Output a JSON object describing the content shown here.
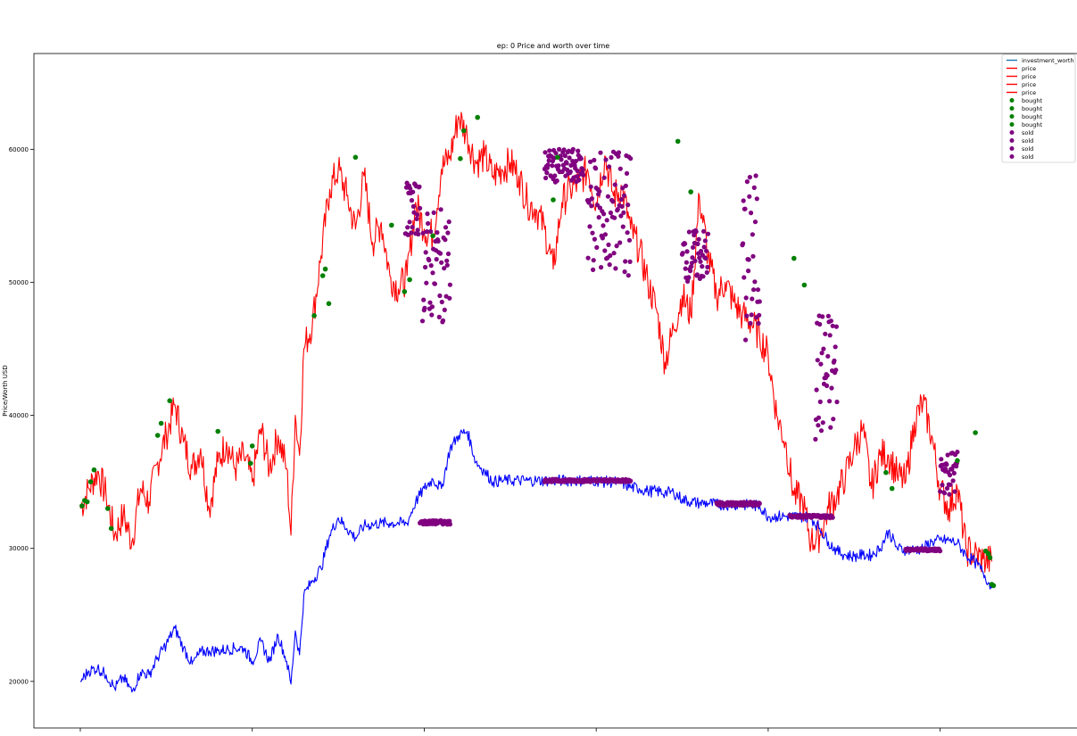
{
  "chart_data": {
    "type": "line",
    "title": "ep: 0 Price and worth over time",
    "xlabel": "",
    "ylabel": "Price/Worth USD",
    "ylim": [
      16500,
      67200
    ],
    "yticks": [
      20000,
      30000,
      40000,
      50000,
      60000
    ],
    "xlim": [
      0,
      1100
    ],
    "legend_position": "top-right",
    "legend": [
      {
        "label": "investment_worth",
        "kind": "line",
        "color": "#1f77b4"
      },
      {
        "label": "price",
        "kind": "line",
        "color": "#ff0000"
      },
      {
        "label": "price",
        "kind": "line",
        "color": "#ff0000"
      },
      {
        "label": "price",
        "kind": "line",
        "color": "#ff0000"
      },
      {
        "label": "price",
        "kind": "line",
        "color": "#ff0000"
      },
      {
        "label": "bought",
        "kind": "dot",
        "color": "#008000"
      },
      {
        "label": "bought",
        "kind": "dot",
        "color": "#008000"
      },
      {
        "label": "bought",
        "kind": "dot",
        "color": "#008000"
      },
      {
        "label": "bought",
        "kind": "dot",
        "color": "#008000"
      },
      {
        "label": "sold",
        "kind": "dot",
        "color": "#800080"
      },
      {
        "label": "sold",
        "kind": "dot",
        "color": "#800080"
      },
      {
        "label": "sold",
        "kind": "dot",
        "color": "#800080"
      },
      {
        "label": "sold",
        "kind": "dot",
        "color": "#800080"
      }
    ],
    "series": [
      {
        "name": "price",
        "color": "#ff0000",
        "x": [
          0,
          10,
          20,
          30,
          40,
          50,
          60,
          70,
          80,
          90,
          100,
          110,
          120,
          130,
          140,
          150,
          160,
          170,
          180,
          190,
          200,
          210,
          220,
          230,
          240,
          245,
          250,
          255,
          260,
          270,
          280,
          290,
          300,
          310,
          320,
          330,
          340,
          350,
          360,
          370,
          380,
          390,
          400,
          410,
          420,
          430,
          440,
          450,
          460,
          470,
          480,
          490,
          500,
          510,
          520,
          530,
          540,
          550,
          560,
          570,
          580,
          590,
          600,
          610,
          620,
          630,
          640,
          650,
          660,
          670,
          680,
          690,
          700,
          710,
          720,
          730,
          740,
          750,
          760,
          770,
          780,
          790,
          800,
          810,
          820,
          830,
          840,
          850,
          860,
          870,
          880,
          890,
          900,
          910,
          920,
          930,
          940,
          950,
          960,
          970,
          980,
          990,
          1000,
          1010,
          1020,
          1030,
          1040,
          1050,
          1060
        ],
        "y": [
          33000,
          34500,
          35800,
          34000,
          31000,
          32500,
          30500,
          34500,
          33500,
          36500,
          38500,
          40800,
          38000,
          36000,
          37500,
          33000,
          36500,
          38000,
          36000,
          37000,
          35000,
          39000,
          36000,
          38500,
          36000,
          31000,
          40000,
          37000,
          45000,
          47000,
          52000,
          57000,
          58500,
          56500,
          54000,
          58000,
          53000,
          54500,
          50500,
          49500,
          50500,
          56000,
          54000,
          53500,
          58500,
          59500,
          62500,
          61000,
          59000,
          59500,
          58000,
          58500,
          59000,
          58000,
          56000,
          55500,
          54000,
          51000,
          56000,
          57000,
          57500,
          58500,
          56000,
          59500,
          56500,
          57000,
          54000,
          52500,
          50000,
          48000,
          44000,
          46500,
          49000,
          47500,
          56500,
          52000,
          49000,
          50000,
          48500,
          47500,
          47000,
          46000,
          44500,
          40000,
          38000,
          34000,
          33500,
          30500,
          31000,
          33000,
          34000,
          35500,
          37500,
          39000,
          34500,
          37000,
          37000,
          35500,
          35000,
          39500,
          41000,
          38500,
          34500,
          33000,
          34500,
          30000,
          29500,
          29200,
          29000
        ]
      },
      {
        "name": "investment_worth",
        "color": "#0000ff",
        "x": [
          0,
          10,
          20,
          30,
          40,
          50,
          60,
          70,
          80,
          90,
          100,
          110,
          120,
          130,
          140,
          150,
          160,
          170,
          180,
          190,
          200,
          210,
          220,
          230,
          240,
          245,
          250,
          255,
          260,
          270,
          280,
          290,
          300,
          310,
          320,
          330,
          340,
          350,
          360,
          370,
          380,
          390,
          400,
          410,
          420,
          430,
          440,
          450,
          460,
          470,
          480,
          490,
          500,
          510,
          520,
          530,
          540,
          550,
          560,
          570,
          580,
          590,
          600,
          610,
          620,
          630,
          640,
          650,
          660,
          670,
          680,
          690,
          700,
          710,
          720,
          730,
          740,
          750,
          760,
          770,
          780,
          790,
          800,
          810,
          820,
          830,
          840,
          850,
          860,
          870,
          880,
          890,
          900,
          910,
          920,
          930,
          940,
          950,
          960,
          970,
          980,
          990,
          1000,
          1010,
          1020,
          1030,
          1040,
          1050,
          1060
        ],
        "y": [
          20000,
          20800,
          21000,
          20500,
          19500,
          20300,
          19200,
          20700,
          20500,
          21800,
          22800,
          24000,
          22500,
          21300,
          22200,
          22300,
          22300,
          22400,
          22500,
          22500,
          21500,
          23000,
          21500,
          23500,
          21500,
          19800,
          23800,
          22000,
          26500,
          27600,
          28500,
          31000,
          32300,
          31500,
          30800,
          31700,
          31800,
          31900,
          31900,
          31900,
          31900,
          33500,
          34500,
          35200,
          34500,
          37500,
          38500,
          38800,
          36500,
          35800,
          35000,
          35100,
          35100,
          35100,
          35100,
          35100,
          35100,
          35100,
          35100,
          35100,
          35100,
          35100,
          35100,
          35000,
          35000,
          34900,
          34600,
          34500,
          34300,
          34300,
          34200,
          34200,
          33700,
          33500,
          33400,
          33400,
          33300,
          33300,
          33300,
          33300,
          33200,
          33200,
          32400,
          32400,
          32400,
          32400,
          32400,
          32300,
          31500,
          30500,
          29800,
          29500,
          29400,
          29500,
          29500,
          30000,
          31300,
          30000,
          29900,
          29900,
          30000,
          30500,
          30600,
          30600,
          30400,
          29500,
          29000,
          28200,
          27000
        ]
      }
    ],
    "bought_points": [
      {
        "x": 2,
        "y": 33200
      },
      {
        "x": 5,
        "y": 33600
      },
      {
        "x": 8,
        "y": 33500
      },
      {
        "x": 12,
        "y": 35000
      },
      {
        "x": 16,
        "y": 35900
      },
      {
        "x": 32,
        "y": 33000
      },
      {
        "x": 36,
        "y": 31500
      },
      {
        "x": 90,
        "y": 38500
      },
      {
        "x": 94,
        "y": 39400
      },
      {
        "x": 104,
        "y": 41100
      },
      {
        "x": 160,
        "y": 38800
      },
      {
        "x": 198,
        "y": 36400
      },
      {
        "x": 200,
        "y": 37700
      },
      {
        "x": 272,
        "y": 47500
      },
      {
        "x": 282,
        "y": 50500
      },
      {
        "x": 285,
        "y": 51000
      },
      {
        "x": 289,
        "y": 48400
      },
      {
        "x": 320,
        "y": 59400
      },
      {
        "x": 362,
        "y": 54300
      },
      {
        "x": 377,
        "y": 49300
      },
      {
        "x": 383,
        "y": 50200
      },
      {
        "x": 410,
        "y": 53500
      },
      {
        "x": 442,
        "y": 59300
      },
      {
        "x": 446,
        "y": 61400
      },
      {
        "x": 462,
        "y": 62400
      },
      {
        "x": 550,
        "y": 56200
      },
      {
        "x": 555,
        "y": 59400
      },
      {
        "x": 695,
        "y": 60600
      },
      {
        "x": 710,
        "y": 56800
      },
      {
        "x": 830,
        "y": 51800
      },
      {
        "x": 842,
        "y": 49800
      },
      {
        "x": 937,
        "y": 35700
      },
      {
        "x": 944,
        "y": 34500
      },
      {
        "x": 1020,
        "y": 36600
      },
      {
        "x": 1041,
        "y": 38700
      },
      {
        "x": 1053,
        "y": 29800
      },
      {
        "x": 1056,
        "y": 29600
      },
      {
        "x": 1058,
        "y": 29300
      },
      {
        "x": 1060,
        "y": 27300
      },
      {
        "x": 1062,
        "y": 27200
      }
    ],
    "sold_segments": [
      {
        "x0": 378,
        "x1": 395,
        "y0": 53500,
        "y1": 57500
      },
      {
        "x0": 398,
        "x1": 430,
        "y0": 47000,
        "y1": 55500
      },
      {
        "x0": 540,
        "x1": 585,
        "y0": 57500,
        "y1": 60000
      },
      {
        "x0": 590,
        "x1": 640,
        "y0": 50500,
        "y1": 60000
      },
      {
        "x0": 700,
        "x1": 730,
        "y0": 50000,
        "y1": 54000
      },
      {
        "x0": 770,
        "x1": 790,
        "y0": 45000,
        "y1": 58300
      },
      {
        "x0": 855,
        "x1": 880,
        "y0": 38000,
        "y1": 48000
      },
      {
        "x0": 1000,
        "x1": 1020,
        "y0": 34000,
        "y1": 37500
      },
      {
        "x0": 395,
        "x1": 430,
        "y0": 31800,
        "y1": 32100
      },
      {
        "x0": 540,
        "x1": 640,
        "y0": 35000,
        "y1": 35200
      },
      {
        "x0": 740,
        "x1": 790,
        "y0": 33200,
        "y1": 33500
      },
      {
        "x0": 825,
        "x1": 875,
        "y0": 32300,
        "y1": 32500
      },
      {
        "x0": 960,
        "x1": 1000,
        "y0": 29800,
        "y1": 30000
      }
    ]
  }
}
